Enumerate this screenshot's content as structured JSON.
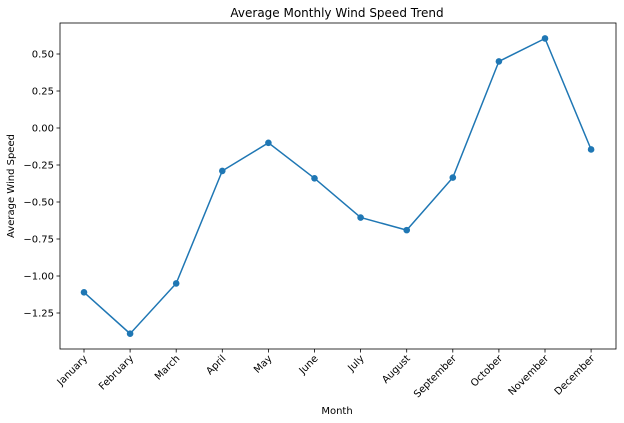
{
  "chart_data": {
    "type": "line",
    "title": "Average Monthly Wind Speed Trend",
    "xlabel": "Month",
    "ylabel": "Average Wind Speed",
    "categories": [
      "January",
      "February",
      "March",
      "April",
      "May",
      "June",
      "July",
      "August",
      "September",
      "October",
      "November",
      "December"
    ],
    "series": [
      {
        "values": [
          -1.11,
          -1.39,
          -1.05,
          -0.29,
          -0.1,
          -0.34,
          -0.605,
          -0.69,
          -0.335,
          0.45,
          0.605,
          -0.145
        ],
        "color": "#1f77b4"
      }
    ],
    "yticks": [
      -1.25,
      -1.0,
      -0.75,
      -0.5,
      -0.25,
      0.0,
      0.25,
      0.5
    ],
    "ytick_labels": [
      "−1.25",
      "−1.00",
      "−0.75",
      "−0.50",
      "−0.25",
      "0.00",
      "0.25",
      "0.50"
    ],
    "ylim": [
      -1.44,
      0.75
    ],
    "grid": false,
    "legend": "none"
  }
}
